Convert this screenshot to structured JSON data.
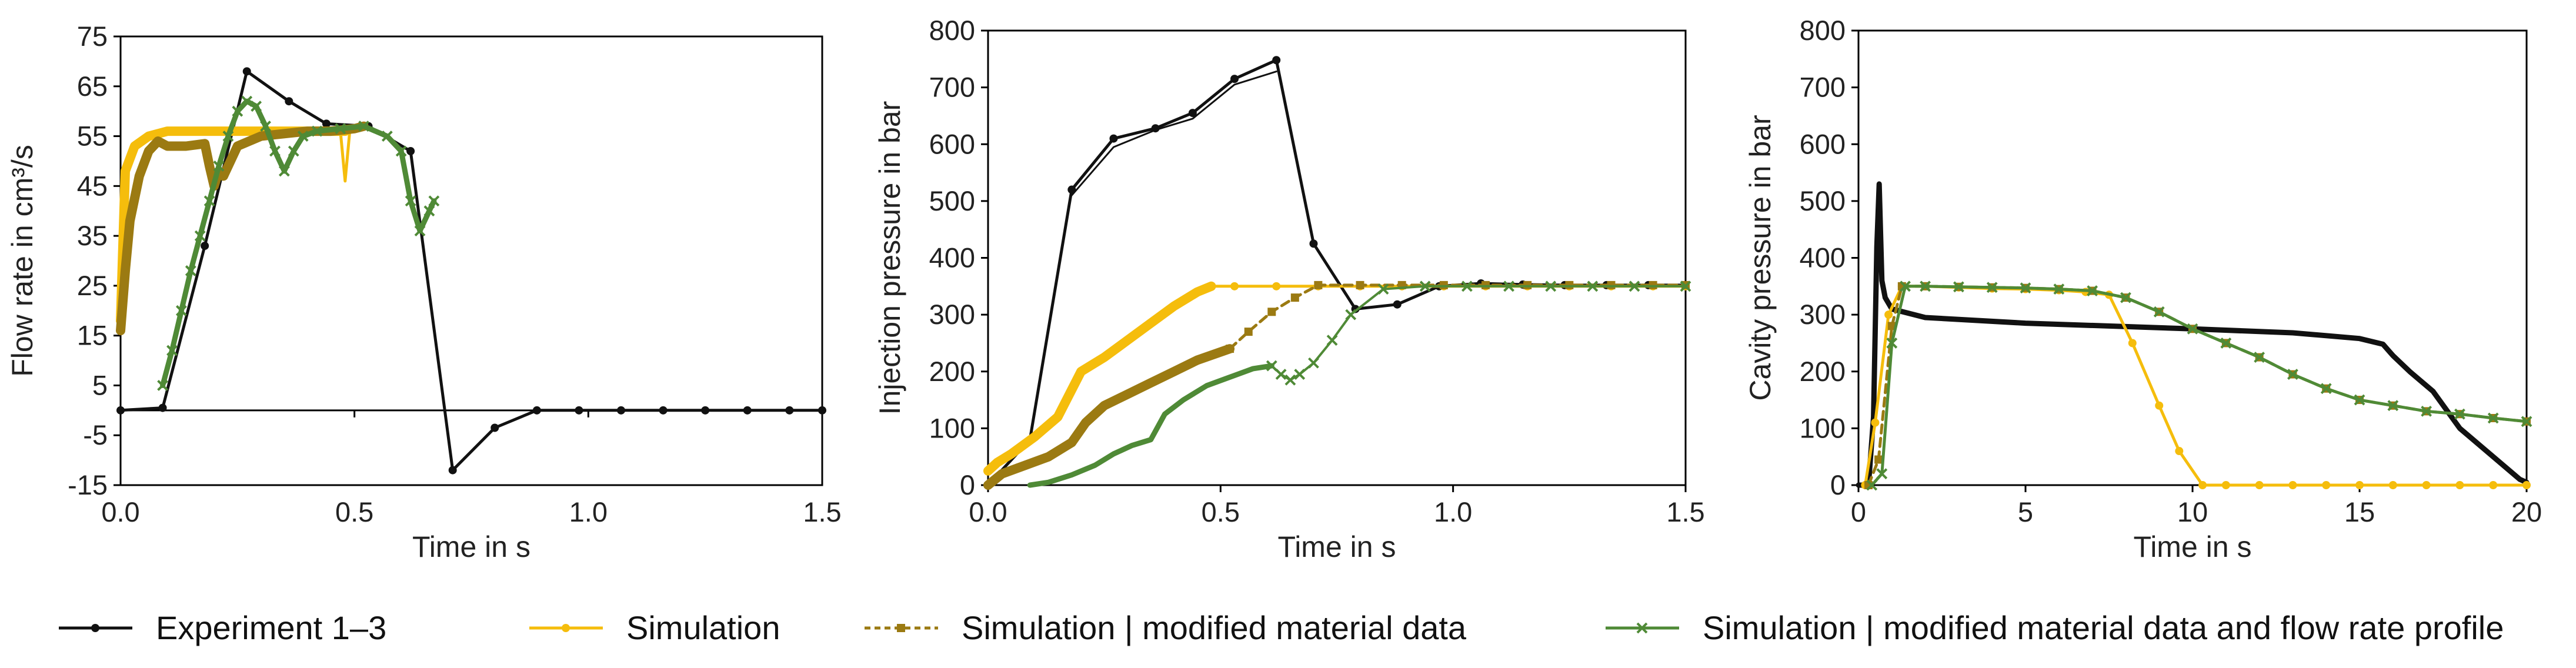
{
  "colors": {
    "experiment": "#111111",
    "simulation": "#f5bd0c",
    "sim_modified": "#9b7a12",
    "sim_modified_flow": "#4f8a36",
    "axis": "#000000"
  },
  "legend": [
    {
      "label": "Experiment 1–3",
      "key": "experiment",
      "dash": "",
      "marker": "dot"
    },
    {
      "label": "Simulation",
      "key": "simulation",
      "dash": "",
      "marker": "dot"
    },
    {
      "label": "Simulation | modified material data",
      "key": "sim_modified",
      "dash": "10 7",
      "marker": "square"
    },
    {
      "label": "Simulation | modified material data and flow rate profile",
      "key": "sim_modified_flow",
      "dash": "",
      "marker": "x"
    }
  ],
  "chart_data": [
    {
      "type": "line",
      "title": "",
      "xlabel": "Time in s",
      "ylabel": "Flow rate in cm³/s",
      "xlim": [
        0,
        1.5
      ],
      "ylim": [
        -15,
        75
      ],
      "xticks": [
        "0.0",
        "0.5",
        "1.0",
        "1.5"
      ],
      "xtick_values": [
        0,
        0.5,
        1.0,
        1.5
      ],
      "yticks": [
        "-15",
        "-5",
        "5",
        "15",
        "25",
        "35",
        "45",
        "55",
        "65",
        "75"
      ],
      "ytick_values": [
        -15,
        -5,
        5,
        15,
        25,
        35,
        45,
        55,
        65,
        75
      ],
      "baseline": 0,
      "series": [
        {
          "name": "Experiment 1–3",
          "key": "experiment",
          "width": 5,
          "marker": "dot",
          "x": [
            0,
            0.09,
            0.18,
            0.27,
            0.36,
            0.44,
            0.53,
            0.62,
            0.71,
            0.8,
            0.89,
            0.98,
            1.07,
            1.16,
            1.25,
            1.34,
            1.43,
            1.5
          ],
          "y": [
            0,
            0.5,
            33,
            68,
            62,
            57.5,
            57,
            52,
            -12,
            -3.5,
            0,
            0,
            0,
            0,
            0,
            0,
            0,
            0
          ]
        },
        {
          "name": "Simulation",
          "key": "simulation",
          "width": 16,
          "marker": "none",
          "x": [
            0,
            0.01,
            0.03,
            0.06,
            0.1,
            0.15,
            0.2,
            0.25,
            0.3,
            0.35,
            0.4,
            0.45,
            0.48
          ],
          "y": [
            18,
            48,
            53,
            55,
            56,
            56,
            56,
            56,
            56,
            56,
            56,
            56,
            56
          ]
        },
        {
          "name": "Simulation spikes",
          "key": "simulation",
          "width": 5,
          "marker": "none",
          "x": [
            0.47,
            0.48,
            0.49,
            0.5
          ],
          "y": [
            56,
            46,
            56,
            56
          ]
        },
        {
          "name": "Simulation | modified material data",
          "key": "sim_modified",
          "width": 16,
          "marker": "none",
          "x": [
            0,
            0.01,
            0.02,
            0.04,
            0.06,
            0.08,
            0.1,
            0.14,
            0.18,
            0.19,
            0.2,
            0.21,
            0.22,
            0.25,
            0.3,
            0.35,
            0.4,
            0.45,
            0.5,
            0.52
          ],
          "y": [
            16,
            28,
            38,
            47,
            52,
            54,
            53,
            53,
            53.5,
            49,
            45,
            48,
            47,
            53,
            55,
            55.5,
            56,
            56,
            56.5,
            57
          ]
        },
        {
          "name": "Simulation | modified material data and flow rate profile",
          "key": "sim_modified_flow",
          "width": 9,
          "marker": "x",
          "x": [
            0.09,
            0.11,
            0.13,
            0.15,
            0.17,
            0.19,
            0.21,
            0.23,
            0.25,
            0.27,
            0.29,
            0.31,
            0.33,
            0.35,
            0.37,
            0.39,
            0.42,
            0.47,
            0.52,
            0.57,
            0.6,
            0.62,
            0.64,
            0.66,
            0.67
          ],
          "y": [
            5,
            12,
            20,
            28,
            35,
            42,
            49,
            55,
            60,
            62,
            61,
            57,
            52,
            48,
            52,
            55,
            56,
            56.5,
            57,
            55,
            52,
            42,
            36,
            40,
            42
          ]
        }
      ]
    },
    {
      "type": "line",
      "title": "",
      "xlabel": "Time in s",
      "ylabel": "Injection pressure in bar",
      "xlim": [
        0,
        1.5
      ],
      "ylim": [
        0,
        800
      ],
      "xticks": [
        "0.0",
        "0.5",
        "1.0",
        "1.5"
      ],
      "xtick_values": [
        0,
        0.5,
        1.0,
        1.5
      ],
      "yticks": [
        "0",
        "100",
        "200",
        "300",
        "400",
        "500",
        "600",
        "700",
        "800"
      ],
      "ytick_values": [
        0,
        100,
        200,
        300,
        400,
        500,
        600,
        700,
        800
      ],
      "baseline": null,
      "series": [
        {
          "name": "Experiment 1–3",
          "key": "experiment",
          "width": 5,
          "marker": "dot",
          "x": [
            0.0,
            0.09,
            0.18,
            0.27,
            0.36,
            0.44,
            0.53,
            0.62,
            0.7,
            0.79,
            0.88,
            0.97,
            1.06,
            1.15,
            1.24,
            1.33,
            1.42,
            1.5
          ],
          "y": [
            0,
            80,
            520,
            610,
            628,
            655,
            715,
            748,
            425,
            310,
            318,
            350,
            355,
            353,
            352,
            352,
            352,
            352
          ]
        },
        {
          "name": "Experiment 1–3 (run 2)",
          "key": "experiment",
          "width": 3,
          "marker": "none",
          "x": [
            0.18,
            0.27,
            0.36,
            0.44,
            0.53,
            0.62
          ],
          "y": [
            510,
            595,
            625,
            645,
            705,
            728
          ]
        },
        {
          "name": "Simulation",
          "key": "simulation",
          "width": 16,
          "marker": "none",
          "x": [
            0,
            0.02,
            0.05,
            0.1,
            0.15,
            0.2,
            0.25,
            0.3,
            0.35,
            0.4,
            0.45,
            0.48
          ],
          "y": [
            25,
            40,
            55,
            85,
            120,
            200,
            225,
            255,
            285,
            315,
            340,
            350
          ]
        },
        {
          "name": "Simulation ext",
          "key": "simulation",
          "width": 5,
          "marker": "dot",
          "x": [
            0.48,
            0.53,
            0.62,
            0.71,
            0.8,
            0.89,
            0.98,
            1.07,
            1.16,
            1.25,
            1.34,
            1.43,
            1.5
          ],
          "y": [
            350,
            350,
            350,
            350,
            350,
            350,
            350,
            350,
            350,
            350,
            350,
            350,
            350
          ]
        },
        {
          "name": "Simulation | modified material data",
          "key": "sim_modified",
          "width": 16,
          "marker": "none",
          "x": [
            0,
            0.03,
            0.08,
            0.13,
            0.18,
            0.21,
            0.25,
            0.3,
            0.35,
            0.4,
            0.45,
            0.52
          ],
          "y": [
            0,
            20,
            35,
            50,
            75,
            110,
            140,
            160,
            180,
            200,
            220,
            240
          ]
        },
        {
          "name": "Simulation | modified material data (dashed)",
          "key": "sim_modified",
          "width": 5,
          "marker": "square",
          "dash": "14 9",
          "x": [
            0.52,
            0.56,
            0.61,
            0.66,
            0.71,
            0.8,
            0.89,
            0.98,
            1.07,
            1.16,
            1.25,
            1.34,
            1.43,
            1.5
          ],
          "y": [
            240,
            270,
            305,
            330,
            352,
            352,
            352,
            352,
            352,
            352,
            352,
            352,
            352,
            352
          ]
        },
        {
          "name": "Simulation | modified material data and flow rate profile",
          "key": "sim_modified_flow",
          "width": 9,
          "marker": "none",
          "x": [
            0.09,
            0.13,
            0.18,
            0.23,
            0.27,
            0.31,
            0.35,
            0.38,
            0.42,
            0.47,
            0.52,
            0.57,
            0.61
          ],
          "y": [
            0,
            5,
            18,
            35,
            55,
            70,
            80,
            125,
            150,
            175,
            190,
            205,
            210
          ]
        },
        {
          "name": "Simulation | modified material data and flow rate profile (tail)",
          "key": "sim_modified_flow",
          "width": 4,
          "marker": "x",
          "x": [
            0.61,
            0.63,
            0.65,
            0.67,
            0.7,
            0.74,
            0.78,
            0.85,
            0.94,
            1.03,
            1.12,
            1.21,
            1.3,
            1.39,
            1.5
          ],
          "y": [
            210,
            195,
            185,
            195,
            215,
            255,
            300,
            345,
            350,
            350,
            350,
            350,
            350,
            350,
            350
          ]
        }
      ]
    },
    {
      "type": "line",
      "title": "",
      "xlabel": "Time in s",
      "ylabel": "Cavity pressure in bar",
      "xlim": [
        0,
        20
      ],
      "ylim": [
        0,
        800
      ],
      "xticks": [
        "0",
        "5",
        "10",
        "15",
        "20"
      ],
      "xtick_values": [
        0,
        5,
        10,
        15,
        20
      ],
      "yticks": [
        "0",
        "100",
        "200",
        "300",
        "400",
        "500",
        "600",
        "700",
        "800"
      ],
      "ytick_values": [
        0,
        100,
        200,
        300,
        400,
        500,
        600,
        700,
        800
      ],
      "baseline": null,
      "series": [
        {
          "name": "Experiment 1–3",
          "key": "experiment",
          "width": 9,
          "marker": "none",
          "x": [
            0,
            0.3,
            0.45,
            0.55,
            0.62,
            0.7,
            0.8,
            1.0,
            2,
            5,
            10,
            13,
            15,
            15.7,
            16,
            16.5,
            17.2,
            18,
            19,
            19.8,
            20
          ],
          "y": [
            0,
            0,
            120,
            420,
            530,
            360,
            330,
            310,
            295,
            285,
            275,
            268,
            258,
            248,
            228,
            200,
            165,
            100,
            50,
            10,
            5
          ]
        },
        {
          "name": "Simulation",
          "key": "simulation",
          "width": 5,
          "marker": "dot",
          "x": [
            0.2,
            0.5,
            0.9,
            1.3,
            2.0,
            3.0,
            4.0,
            5.0,
            6.0,
            6.8,
            7.5,
            8.2,
            9.0,
            9.6,
            10.3,
            11,
            12,
            13,
            14,
            15,
            16,
            17,
            18,
            19,
            20
          ],
          "y": [
            0,
            110,
            300,
            350,
            350,
            348,
            346,
            345,
            343,
            340,
            335,
            250,
            140,
            60,
            0,
            0,
            0,
            0,
            0,
            0,
            0,
            0,
            0,
            0,
            0
          ]
        },
        {
          "name": "Simulation | modified material data",
          "key": "sim_modified",
          "width": 5,
          "marker": "square",
          "dash": "14 9",
          "x": [
            0.3,
            0.6,
            1.0,
            1.3,
            2,
            3,
            4,
            5,
            6,
            7,
            8,
            9,
            10,
            11,
            12,
            13,
            14,
            15,
            16,
            17,
            18,
            19,
            20
          ],
          "y": [
            0,
            45,
            280,
            350,
            350,
            349,
            348,
            347,
            345,
            342,
            330,
            305,
            275,
            250,
            225,
            195,
            170,
            150,
            140,
            130,
            125,
            118,
            112
          ]
        },
        {
          "name": "Simulation | modified material data and flow rate profile",
          "key": "sim_modified_flow",
          "width": 5,
          "marker": "x",
          "x": [
            0.4,
            0.7,
            1.0,
            1.4,
            2,
            3,
            4,
            5,
            6,
            7,
            8,
            9,
            10,
            11,
            12,
            13,
            14,
            15,
            16,
            17,
            18,
            19,
            20
          ],
          "y": [
            0,
            20,
            250,
            350,
            350,
            349,
            348,
            347,
            345,
            342,
            330,
            305,
            275,
            250,
            225,
            195,
            170,
            150,
            140,
            130,
            125,
            118,
            112
          ]
        }
      ]
    }
  ]
}
